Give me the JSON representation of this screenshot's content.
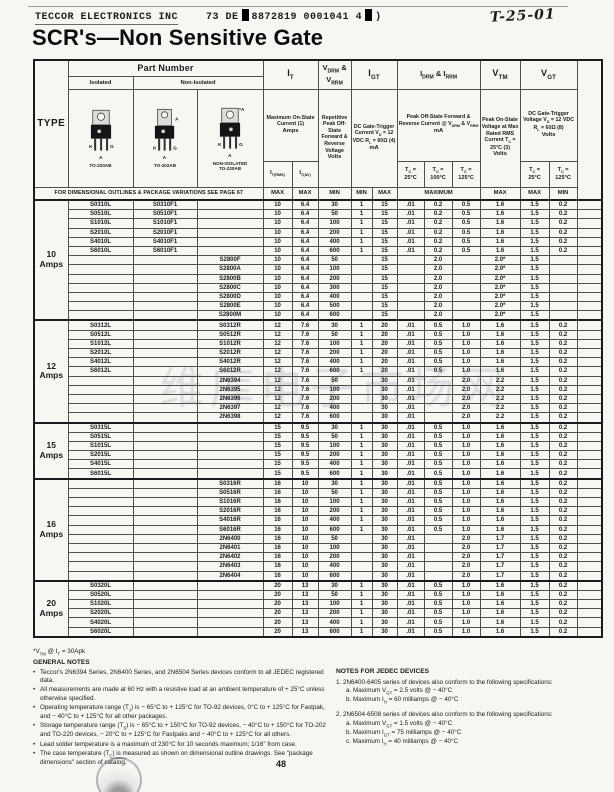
{
  "header": {
    "company": "TECCOR ELECTRONICS INC",
    "code_left": "73 DE",
    "code_mid": "8872819 0001041 4",
    "code_end": ")",
    "handwritten": "T-25-01",
    "title": "SCR's—Non Sensitive Gate"
  },
  "watermark": "维库电子市场网",
  "page": {
    "number": "48"
  },
  "table": {
    "head": {
      "type": "TYPE",
      "part_number": "Part Number",
      "isolated": "Isolated",
      "non_isolated": "Non-Isolated",
      "packages": [
        "TO-220AB",
        "TO-202AB",
        "NON-ISOLATED|TO-220AB"
      ],
      "pins": {
        "k": "K",
        "a": "A",
        "g": "G",
        "tab_a": "A",
        "tab_star_a": "*A"
      },
      "dim_note": "FOR DIMENSIONAL OUTLINES & PACKAGE VARIATIONS SEE PAGE 67",
      "cols": {
        "it": {
          "title": "I~T~",
          "desc": "Maximum On-State Current (1)",
          "unit": "Amps",
          "sub1": "I~T(RMS)~",
          "sub2": "I~T(AV)~",
          "mm1": "MAX",
          "mm2": "MAX"
        },
        "vdrm": {
          "title": "V~DRM~ &|V~RRM~",
          "desc": "Repetitive Peak Off-State Forward & Reverse Voltage",
          "unit": "Volts",
          "mm": "MIN"
        },
        "igt": {
          "title": "I~GT~",
          "desc": "DC Gate-Trigger Current V~D~ = 12 VDC R~L~ = 60Ω (4)",
          "unit": "mA",
          "mm1": "MIN",
          "mm2": "MAX"
        },
        "idrm": {
          "title": "I~DRM~ & I~RRM~",
          "desc": "Peak Off-State Forward & Reverse Current @ V~DRM~ & V~RRM~",
          "unit": "mA",
          "tc1": "T~C~ =|25°C",
          "tc2": "T~C~ =|100°C",
          "tc3": "T~C~ =|125°C",
          "mm": "MAXIMUM"
        },
        "vtm": {
          "title": "V~TM~",
          "desc": "Peak On-State Voltage at Max Rated RMS Current T~C~ = 25°C (3)",
          "unit": "Volts",
          "mm": "MAX"
        },
        "vgt": {
          "title": "V~GT~",
          "desc": "DC Gate-Trigger Voltage V~D~ = 12 VDC R~L~ = 60Ω (8)",
          "unit": "Volts",
          "tc1": "T~C~ =|25°C",
          "tc2": "T~C~ =|125°C",
          "mm1": "MAX",
          "mm2": "MIN"
        }
      }
    },
    "groups": [
      {
        "amp": "10|Amps",
        "rows": [
          [
            "S0310L",
            "S0310F1",
            "",
            "10",
            "6.4",
            "30",
            "1",
            "15",
            ".01",
            "0.2",
            "0.5",
            "1.6",
            "1.5",
            "0.2"
          ],
          [
            "S0510L",
            "S0510F1",
            "",
            "10",
            "6.4",
            "50",
            "1",
            "15",
            ".01",
            "0.2",
            "0.5",
            "1.6",
            "1.5",
            "0.2"
          ],
          [
            "S1010L",
            "S1010F1",
            "",
            "10",
            "6.4",
            "100",
            "1",
            "15",
            ".01",
            "0.2",
            "0.5",
            "1.6",
            "1.5",
            "0.2"
          ],
          [
            "S2010L",
            "S2010F1",
            "",
            "10",
            "6.4",
            "200",
            "1",
            "15",
            ".01",
            "0.2",
            "0.5",
            "1.6",
            "1.5",
            "0.2"
          ],
          [
            "S4010L",
            "S4010F1",
            "",
            "10",
            "6.4",
            "400",
            "1",
            "15",
            ".01",
            "0.2",
            "0.5",
            "1.6",
            "1.5",
            "0.2"
          ],
          [
            "S6010L",
            "S6010F1",
            "",
            "10",
            "6.4",
            "600",
            "1",
            "15",
            ".01",
            "0.2",
            "0.5",
            "1.6",
            "1.5",
            "0.2"
          ],
          [
            "",
            "",
            "S2800F",
            "10",
            "6.4",
            "50",
            "",
            "15",
            "",
            "2.0",
            "",
            "2.0*",
            "1.5",
            ""
          ],
          [
            "",
            "",
            "S2800A",
            "10",
            "6.4",
            "100",
            "",
            "15",
            "",
            "2.0",
            "",
            "2.0*",
            "1.5",
            ""
          ],
          [
            "",
            "",
            "S2800B",
            "10",
            "6.4",
            "200",
            "",
            "15",
            "",
            "2.0",
            "",
            "2.0*",
            "1.5",
            ""
          ],
          [
            "",
            "",
            "S2800C",
            "10",
            "6.4",
            "300",
            "",
            "15",
            "",
            "2.0",
            "",
            "2.0*",
            "1.5",
            ""
          ],
          [
            "",
            "",
            "S2800D",
            "10",
            "6.4",
            "400",
            "",
            "15",
            "",
            "2.0",
            "",
            "2.0*",
            "1.5",
            ""
          ],
          [
            "",
            "",
            "S2800E",
            "10",
            "6.4",
            "500",
            "",
            "15",
            "",
            "2.0",
            "",
            "2.0*",
            "1.5",
            ""
          ],
          [
            "",
            "",
            "S2800M",
            "10",
            "6.4",
            "600",
            "",
            "15",
            "",
            "2.0",
            "",
            "2.0*",
            "1.5",
            ""
          ]
        ]
      },
      {
        "amp": "12|Amps",
        "rows": [
          [
            "S0312L",
            "",
            "S0312R",
            "12",
            "7.6",
            "30",
            "1",
            "20",
            ".01",
            "0.5",
            "1.0",
            "1.6",
            "1.5",
            "0.2"
          ],
          [
            "S0512L",
            "",
            "S0512R",
            "12",
            "7.6",
            "50",
            "1",
            "20",
            ".01",
            "0.5",
            "1.0",
            "1.6",
            "1.5",
            "0.2"
          ],
          [
            "S1012L",
            "",
            "S1012R",
            "12",
            "7.6",
            "100",
            "1",
            "20",
            ".01",
            "0.5",
            "1.0",
            "1.6",
            "1.5",
            "0.2"
          ],
          [
            "S2012L",
            "",
            "S2012R",
            "12",
            "7.6",
            "200",
            "1",
            "20",
            ".01",
            "0.5",
            "1.0",
            "1.6",
            "1.5",
            "0.2"
          ],
          [
            "S4012L",
            "",
            "S4012R",
            "12",
            "7.6",
            "400",
            "1",
            "20",
            ".01",
            "0.5",
            "1.0",
            "1.6",
            "1.5",
            "0.2"
          ],
          [
            "S6012L",
            "",
            "S6012R",
            "12",
            "7.6",
            "600",
            "1",
            "20",
            ".01",
            "0.5",
            "1.0",
            "1.6",
            "1.5",
            "0.2"
          ],
          [
            "",
            "",
            "2N6394",
            "12",
            "7.6",
            "50",
            "",
            "30",
            ".01",
            "",
            "2.0",
            "2.2",
            "1.5",
            "0.2"
          ],
          [
            "",
            "",
            "2N6395",
            "12",
            "7.6",
            "100",
            "",
            "30",
            ".01",
            "",
            "2.0",
            "2.2",
            "1.5",
            "0.2"
          ],
          [
            "",
            "",
            "2N6396",
            "12",
            "7.6",
            "200",
            "",
            "30",
            ".01",
            "",
            "2.0",
            "2.2",
            "1.5",
            "0.2"
          ],
          [
            "",
            "",
            "2N6397",
            "12",
            "7.6",
            "400",
            "",
            "30",
            ".01",
            "",
            "2.0",
            "2.2",
            "1.5",
            "0.2"
          ],
          [
            "",
            "",
            "2N6398",
            "12",
            "7.6",
            "600",
            "",
            "30",
            ".01",
            "",
            "2.0",
            "2.2",
            "1.5",
            "0.2"
          ]
        ]
      },
      {
        "amp": "15|Amps",
        "rows": [
          [
            "S0315L",
            "",
            "",
            "15",
            "9.5",
            "30",
            "1",
            "30",
            ".01",
            "0.5",
            "1.0",
            "1.6",
            "1.5",
            "0.2"
          ],
          [
            "S0515L",
            "",
            "",
            "15",
            "9.5",
            "50",
            "1",
            "30",
            ".01",
            "0.5",
            "1.0",
            "1.6",
            "1.5",
            "0.2"
          ],
          [
            "S1015L",
            "",
            "",
            "15",
            "9.5",
            "100",
            "1",
            "30",
            ".01",
            "0.5",
            "1.0",
            "1.6",
            "1.5",
            "0.2"
          ],
          [
            "S2015L",
            "",
            "",
            "15",
            "9.5",
            "200",
            "1",
            "30",
            ".01",
            "0.5",
            "1.0",
            "1.6",
            "1.5",
            "0.2"
          ],
          [
            "S4015L",
            "",
            "",
            "15",
            "9.5",
            "400",
            "1",
            "30",
            ".01",
            "0.5",
            "1.0",
            "1.6",
            "1.5",
            "0.2"
          ],
          [
            "S6015L",
            "",
            "",
            "15",
            "9.5",
            "600",
            "1",
            "30",
            ".01",
            "0.5",
            "1.0",
            "1.6",
            "1.5",
            "0.2"
          ]
        ]
      },
      {
        "amp": "16|Amps",
        "rows": [
          [
            "",
            "",
            "S0316R",
            "16",
            "10",
            "30",
            "1",
            "30",
            ".01",
            "0.5",
            "1.0",
            "1.6",
            "1.5",
            "0.2"
          ],
          [
            "",
            "",
            "S0516R",
            "16",
            "10",
            "50",
            "1",
            "30",
            ".01",
            "0.5",
            "1.0",
            "1.6",
            "1.5",
            "0.2"
          ],
          [
            "",
            "",
            "S1016R",
            "16",
            "10",
            "100",
            "1",
            "30",
            ".01",
            "0.5",
            "1.0",
            "1.6",
            "1.5",
            "0.2"
          ],
          [
            "",
            "",
            "S2016R",
            "16",
            "10",
            "200",
            "1",
            "30",
            ".01",
            "0.5",
            "1.0",
            "1.6",
            "1.5",
            "0.2"
          ],
          [
            "",
            "",
            "S4016R",
            "16",
            "10",
            "400",
            "1",
            "30",
            ".01",
            "0.5",
            "1.0",
            "1.6",
            "1.5",
            "0.2"
          ],
          [
            "",
            "",
            "S6016R",
            "16",
            "10",
            "600",
            "1",
            "30",
            ".01",
            "0.5",
            "1.0",
            "1.6",
            "1.5",
            "0.2"
          ],
          [
            "",
            "",
            "2N6400",
            "16",
            "10",
            "50",
            "",
            "30",
            ".01",
            "",
            "2.0",
            "1.7",
            "1.5",
            "0.2"
          ],
          [
            "",
            "",
            "2N6401",
            "16",
            "10",
            "100",
            "",
            "30",
            ".01",
            "",
            "2.0",
            "1.7",
            "1.5",
            "0.2"
          ],
          [
            "",
            "",
            "2N6402",
            "16",
            "10",
            "200",
            "",
            "30",
            ".01",
            "",
            "2.0",
            "1.7",
            "1.5",
            "0.2"
          ],
          [
            "",
            "",
            "2N6403",
            "16",
            "10",
            "400",
            "",
            "30",
            ".01",
            "",
            "2.0",
            "1.7",
            "1.5",
            "0.2"
          ],
          [
            "",
            "",
            "2N6404",
            "16",
            "10",
            "600",
            "",
            "30",
            ".01",
            "",
            "2.0",
            "1.7",
            "1.5",
            "0.2"
          ]
        ]
      },
      {
        "amp": "20|Amps",
        "rows": [
          [
            "S0320L",
            "",
            "",
            "20",
            "13",
            "30",
            "1",
            "30",
            ".01",
            "0.5",
            "1.0",
            "1.6",
            "1.5",
            "0.2"
          ],
          [
            "S0520L",
            "",
            "",
            "20",
            "13",
            "50",
            "1",
            "30",
            ".01",
            "0.5",
            "1.0",
            "1.6",
            "1.5",
            "0.2"
          ],
          [
            "S1020L",
            "",
            "",
            "20",
            "13",
            "100",
            "1",
            "30",
            ".01",
            "0.5",
            "1.0",
            "1.6",
            "1.5",
            "0.2"
          ],
          [
            "S2020L",
            "",
            "",
            "20",
            "13",
            "200",
            "1",
            "30",
            ".01",
            "0.5",
            "1.0",
            "1.6",
            "1.5",
            "0.2"
          ],
          [
            "S4020L",
            "",
            "",
            "20",
            "13",
            "400",
            "1",
            "30",
            ".01",
            "0.5",
            "1.0",
            "1.6",
            "1.5",
            "0.2"
          ],
          [
            "S6020L",
            "",
            "",
            "20",
            "13",
            "600",
            "1",
            "30",
            ".01",
            "0.5",
            "1.0",
            "1.6",
            "1.5",
            "0.2"
          ]
        ]
      }
    ]
  },
  "notes_left": {
    "vtm_note": "*V~TM~ @ I~T~ = 30Apk",
    "title": "GENERAL NOTES",
    "items": [
      "Teccor's 2N6394 Series, 2N6400 Series, and 2N6504 Series devices conform to all JEDEC registered data.",
      "All measurements are made at 60 Hz with a resistive load at an ambient temperature of + 25°C unless otherwise specified.",
      "Operating temperature range (T~J~) is − 65°C to + 125°C for TO-92 devices, 0°C to + 125°C for Fastpak, and − 40°C to + 125°C for all other packages.",
      "Storage temperature range (T~S~) is − 65°C to + 150°C for TO-92 devices, − 40°C to + 150°C for TO-202 and TO-220 devices, − 20°C to + 125°C for Fastpaks and − 40°C to + 125°C for all others.",
      "Lead solder temperature is a maximum of 230°C for 10 seconds maximum; 1/16\" from case.",
      "The case temperature (T~C~) is measured as shown on dimensional outline drawings. See \"package dimensions\" section of catalog."
    ]
  },
  "notes_right": {
    "title": "NOTES FOR JEDEC DEVICES",
    "lines": [
      "1. 2N6400-6405 series of devices also conform to the following specifications:",
      "a. Maximum V~GT~ = 2.5 volts @ − 40°C",
      "b. Maximum I~H~ = 60 milliamps @ − 40°C",
      "2. 2N6504-6508 series of devices also conform to the following specifications:",
      "a. Maximum V~GT~ = 1.5 volts @ − 40°C",
      "b. Maximum I~GT~ = 75 milliamps @ − 40°C",
      "c. Maximum I~H~ = 40 milliamps @ − 40°C"
    ]
  }
}
